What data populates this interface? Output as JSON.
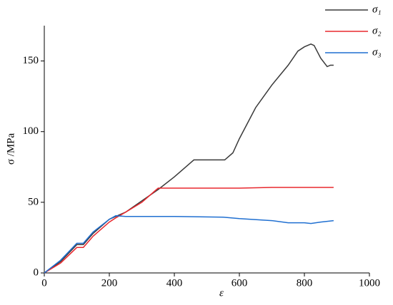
{
  "chart_data": {
    "type": "line",
    "xlabel": "ε",
    "ylabel": "σ /MPa",
    "xlim": [
      0,
      1000
    ],
    "xticks": [
      0,
      200,
      400,
      600,
      800,
      1000
    ],
    "ylim": [
      0,
      175
    ],
    "yticks": [
      0,
      50,
      100,
      150
    ],
    "legend": "top-right",
    "series": [
      {
        "name": "σ₁",
        "color": "#3a3a3a",
        "x": [
          0,
          50,
          100,
          120,
          150,
          200,
          220,
          250,
          300,
          350,
          400,
          450,
          460,
          500,
          555,
          580,
          600,
          650,
          700,
          750,
          780,
          800,
          820,
          830,
          850,
          870,
          880,
          890
        ],
        "values": [
          0,
          8,
          20,
          20,
          28,
          38,
          40,
          43,
          51,
          59,
          68,
          78,
          80,
          80,
          80,
          85,
          95,
          117,
          133,
          147,
          157,
          160,
          162,
          161,
          152,
          146,
          147,
          147
        ]
      },
      {
        "name": "σ₂",
        "color": "#e8282e",
        "x": [
          0,
          50,
          100,
          120,
          150,
          200,
          220,
          250,
          300,
          340,
          350,
          400,
          500,
          600,
          700,
          800,
          890
        ],
        "values": [
          0,
          7,
          18,
          18,
          26,
          36,
          39,
          43,
          50,
          58,
          60,
          60,
          60,
          60,
          60.5,
          60.5,
          60.5
        ]
      },
      {
        "name": "σ₃",
        "color": "#1f6fd1",
        "x": [
          0,
          50,
          100,
          120,
          150,
          200,
          220,
          250,
          400,
          550,
          600,
          700,
          750,
          800,
          820,
          850,
          890
        ],
        "values": [
          0,
          9,
          21,
          21,
          29,
          38,
          40.5,
          40,
          40,
          39.5,
          38.5,
          37,
          35.5,
          35.5,
          35,
          36,
          37
        ]
      }
    ]
  }
}
